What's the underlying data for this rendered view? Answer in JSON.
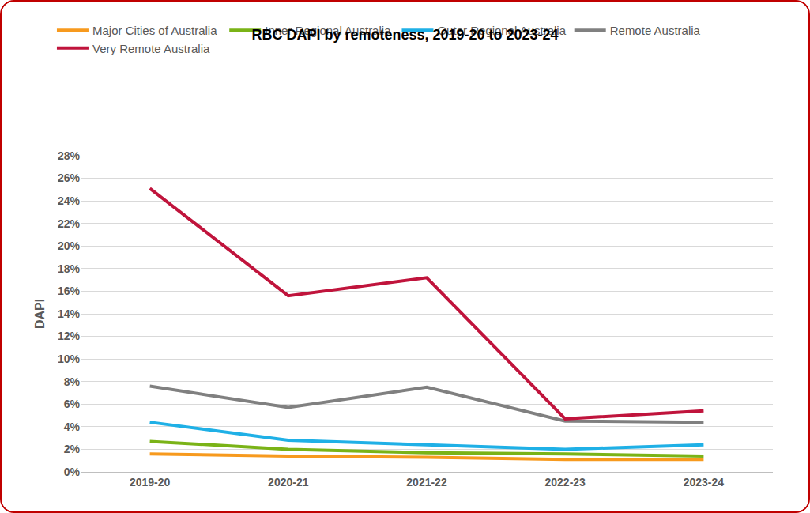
{
  "chart_data": {
    "type": "line",
    "title": "RBC DAPI by remoteness, 2019-20 to 2023-24",
    "y_label": "DAPI",
    "categories": [
      "2019-20",
      "2020-21",
      "2021-22",
      "2022-23",
      "2023-24"
    ],
    "series": [
      {
        "name": "Major Cities of Australia",
        "color": "#F79A1E",
        "values": [
          1.6,
          1.4,
          1.3,
          1.1,
          1.1
        ]
      },
      {
        "name": "Inner Regional Australia",
        "color": "#7AB317",
        "values": [
          2.7,
          2.0,
          1.7,
          1.6,
          1.4
        ]
      },
      {
        "name": "Outer Regional Australia",
        "color": "#1FB0E6",
        "values": [
          4.4,
          2.8,
          2.4,
          2.0,
          2.4
        ]
      },
      {
        "name": "Remote Australia",
        "color": "#808080",
        "values": [
          7.6,
          5.7,
          7.5,
          4.5,
          4.4
        ]
      },
      {
        "name": "Very Remote Australia",
        "color": "#C0143C",
        "values": [
          25.1,
          15.6,
          17.2,
          4.7,
          5.4
        ]
      }
    ],
    "ylim": [
      0,
      28
    ],
    "yticks": [
      {
        "value": 0,
        "label": "0%"
      },
      {
        "value": 2,
        "label": "2%"
      },
      {
        "value": 4,
        "label": "4%"
      },
      {
        "value": 6,
        "label": "6%"
      },
      {
        "value": 8,
        "label": "8%"
      },
      {
        "value": 10,
        "label": "10%"
      },
      {
        "value": 12,
        "label": "12%"
      },
      {
        "value": 14,
        "label": "14%"
      },
      {
        "value": 16,
        "label": "16%"
      },
      {
        "value": 18,
        "label": "18%"
      },
      {
        "value": 20,
        "label": "20%"
      },
      {
        "value": 22,
        "label": "22%"
      },
      {
        "value": 24,
        "label": "24%"
      },
      {
        "value": 26,
        "label": "26%"
      },
      {
        "value": 28,
        "label": "28%"
      }
    ],
    "grid": true,
    "legend": "top"
  }
}
